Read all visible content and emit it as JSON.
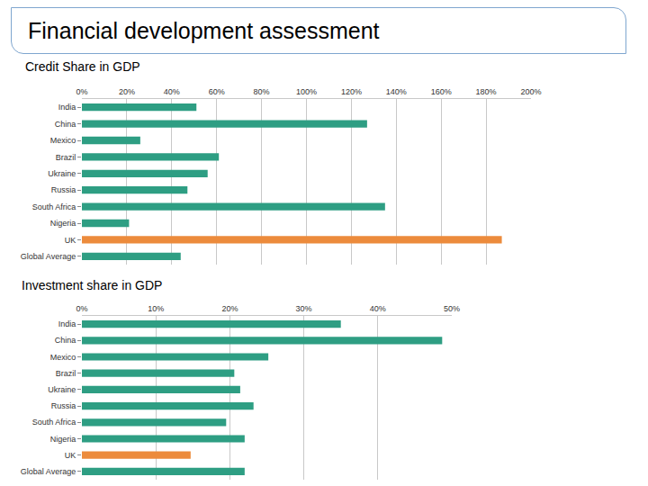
{
  "header": {
    "title": "Financial development assessment"
  },
  "chart_data": [
    {
      "type": "bar",
      "title": "Credit Share in GDP",
      "orientation": "horizontal",
      "grid": true,
      "categories": [
        "India",
        "China",
        "Mexico",
        "Brazil",
        "Ukraine",
        "Russia",
        "South Africa",
        "Nigeria",
        "UK",
        "Global Average"
      ],
      "values": [
        51,
        127,
        26,
        61,
        56,
        47,
        135,
        21,
        187,
        44
      ],
      "colors": [
        "#2e9e83",
        "#2e9e83",
        "#2e9e83",
        "#2e9e83",
        "#2e9e83",
        "#2e9e83",
        "#2e9e83",
        "#2e9e83",
        "#ec8b3c",
        "#2e9e83"
      ],
      "xlim": [
        0,
        200
      ],
      "xticks": [
        {
          "value": 0,
          "label": "0%"
        },
        {
          "value": 20,
          "label": "20%"
        },
        {
          "value": 40,
          "label": "40%"
        },
        {
          "value": 60,
          "label": "60%"
        },
        {
          "value": 80,
          "label": "80%"
        },
        {
          "value": 100,
          "label": "100%"
        },
        {
          "value": 120,
          "label": "120%"
        },
        {
          "value": 140,
          "label": "140%"
        },
        {
          "value": 160,
          "label": "160%"
        },
        {
          "value": 180,
          "label": "180%"
        },
        {
          "value": 200,
          "label": "200%"
        }
      ]
    },
    {
      "type": "bar",
      "title": "Investment share in GDP",
      "orientation": "horizontal",
      "grid": true,
      "categories": [
        "India",
        "China",
        "Mexico",
        "Brazil",
        "Ukraine",
        "Russia",
        "South Africa",
        "Nigeria",
        "UK",
        "Global Average"
      ],
      "values": [
        35,
        48.7,
        25.2,
        20.6,
        21.4,
        23.2,
        19.5,
        22,
        14.7,
        22
      ],
      "colors": [
        "#2e9e83",
        "#2e9e83",
        "#2e9e83",
        "#2e9e83",
        "#2e9e83",
        "#2e9e83",
        "#2e9e83",
        "#2e9e83",
        "#ec8b3c",
        "#2e9e83"
      ],
      "xlim": [
        0,
        50
      ],
      "xticks": [
        {
          "value": 0,
          "label": "0%"
        },
        {
          "value": 10,
          "label": "10%"
        },
        {
          "value": 20,
          "label": "20%"
        },
        {
          "value": 30,
          "label": "30%"
        },
        {
          "value": 40,
          "label": "40%"
        },
        {
          "value": 50,
          "label": "50%"
        }
      ]
    }
  ]
}
